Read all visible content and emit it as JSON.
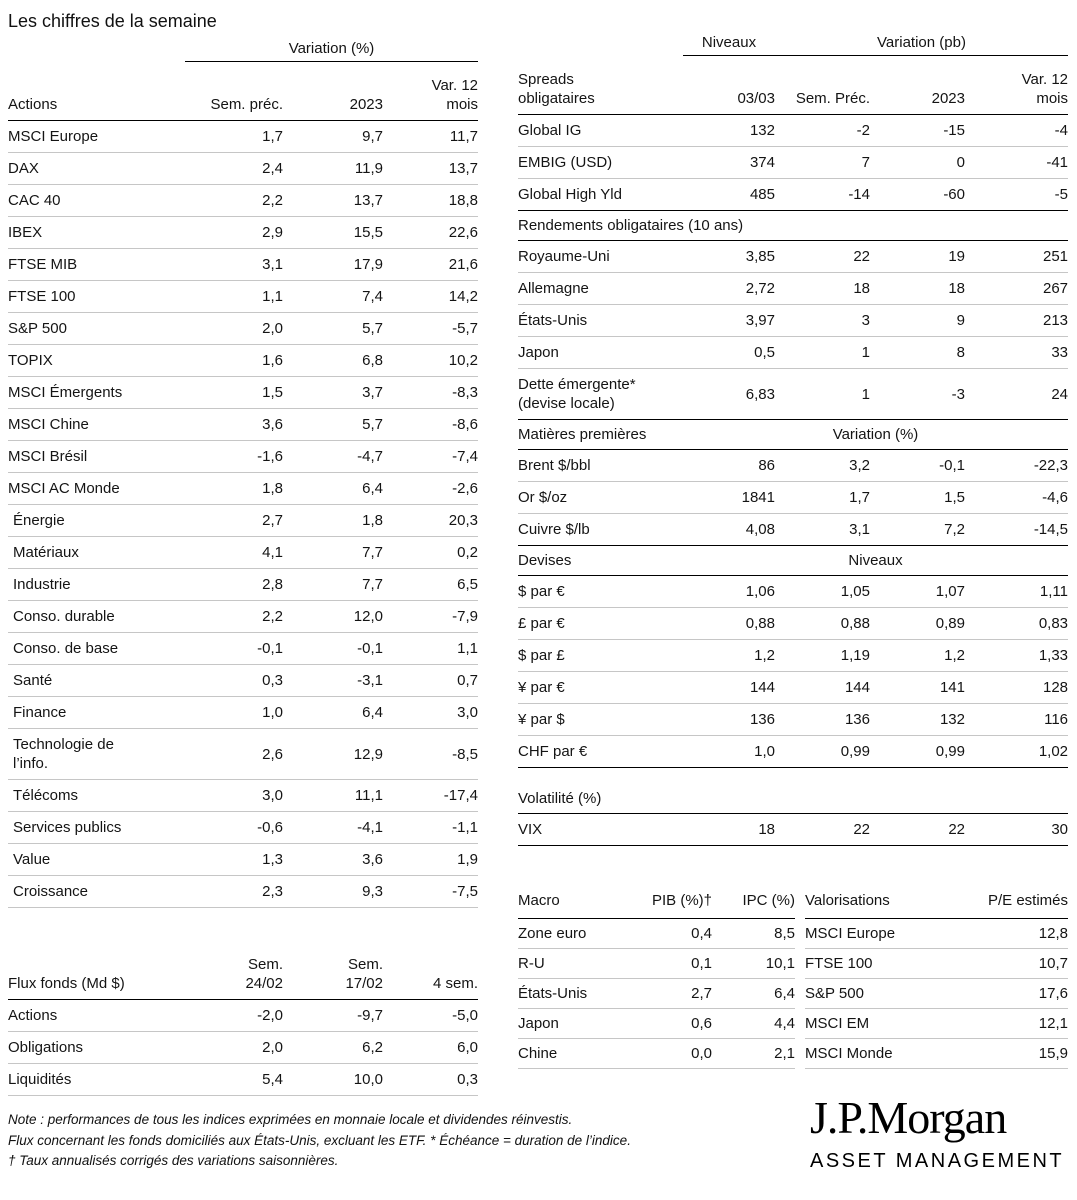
{
  "page": {
    "title": "Les chiffres de la semaine"
  },
  "actions": {
    "group_header": "Variation (%)",
    "col_label": "Actions",
    "col_prev": "Sem. préc.",
    "col_2023": "2023",
    "col_12m": "Var. 12\nmois",
    "rows": [
      {
        "label": "MSCI Europe",
        "values": [
          "1,7",
          "9,7",
          "11,7"
        ]
      },
      {
        "label": "DAX",
        "values": [
          "2,4",
          "11,9",
          "13,7"
        ]
      },
      {
        "label": "CAC 40",
        "values": [
          "2,2",
          "13,7",
          "18,8"
        ]
      },
      {
        "label": "IBEX",
        "values": [
          "2,9",
          "15,5",
          "22,6"
        ]
      },
      {
        "label": "FTSE MIB",
        "values": [
          "3,1",
          "17,9",
          "21,6"
        ]
      },
      {
        "label": "FTSE 100",
        "values": [
          "1,1",
          "7,4",
          "14,2"
        ]
      },
      {
        "label": "S&P 500",
        "values": [
          "2,0",
          "5,7",
          "-5,7"
        ]
      },
      {
        "label": "TOPIX",
        "values": [
          "1,6",
          "6,8",
          "10,2"
        ]
      },
      {
        "label": "MSCI Émergents",
        "values": [
          "1,5",
          "3,7",
          "-8,3"
        ]
      },
      {
        "label": "MSCI Chine",
        "values": [
          "3,6",
          "5,7",
          "-8,6"
        ]
      },
      {
        "label": "MSCI Brésil",
        "values": [
          "-1,6",
          "-4,7",
          "-7,4"
        ]
      },
      {
        "label": "MSCI AC Monde",
        "values": [
          "1,8",
          "6,4",
          "-2,6"
        ]
      },
      {
        "label": "Énergie",
        "indent": true,
        "values": [
          "2,7",
          "1,8",
          "20,3"
        ]
      },
      {
        "label": "Matériaux",
        "indent": true,
        "values": [
          "4,1",
          "7,7",
          "0,2"
        ]
      },
      {
        "label": "Industrie",
        "indent": true,
        "values": [
          "2,8",
          "7,7",
          "6,5"
        ]
      },
      {
        "label": "Conso. durable",
        "indent": true,
        "values": [
          "2,2",
          "12,0",
          "-7,9"
        ]
      },
      {
        "label": "Conso. de base",
        "indent": true,
        "values": [
          "-0,1",
          "-0,1",
          "1,1"
        ]
      },
      {
        "label": "Santé",
        "indent": true,
        "values": [
          "0,3",
          "-3,1",
          "0,7"
        ]
      },
      {
        "label": "Finance",
        "indent": true,
        "values": [
          "1,0",
          "6,4",
          "3,0"
        ]
      },
      {
        "label": "Technologie de\nl’info.",
        "indent": true,
        "values": [
          "2,6",
          "12,9",
          "-8,5"
        ]
      },
      {
        "label": "Télécoms",
        "indent": true,
        "values": [
          "3,0",
          "11,1",
          "-17,4"
        ]
      },
      {
        "label": "Services publics",
        "indent": true,
        "values": [
          "-0,6",
          "-4,1",
          "-1,1"
        ]
      },
      {
        "label": "Value",
        "indent": true,
        "values": [
          "1,3",
          "3,6",
          "1,9"
        ]
      },
      {
        "label": "Croissance",
        "indent": true,
        "values": [
          "2,3",
          "9,3",
          "-7,5"
        ]
      }
    ]
  },
  "flux": {
    "col_label": "Flux fonds (Md $)",
    "col_prev": "Sem.\n24/02",
    "col_prev2": "Sem.\n17/02",
    "col_4w": "4 sem.",
    "rows": [
      {
        "label": "Actions",
        "values": [
          "-2,0",
          "-9,7",
          "-5,0"
        ]
      },
      {
        "label": "Obligations",
        "values": [
          "2,0",
          "6,2",
          "6,0"
        ]
      },
      {
        "label": "Liquidités",
        "values": [
          "5,4",
          "10,0",
          "0,3"
        ]
      }
    ]
  },
  "market": {
    "header_niveaux": "Niveaux",
    "header_variation": "Variation (pb)",
    "col_label": "Spreads\nobligataires",
    "col_date": "03/03",
    "col_prev": "Sem. Préc.",
    "col_2023": "2023",
    "col_12m": "Var. 12\nmois",
    "rows": [
      {
        "label": "Global IG",
        "values": [
          "132",
          "-2",
          "-15",
          "-4"
        ]
      },
      {
        "label": "EMBIG (USD)",
        "values": [
          "374",
          "7",
          "0",
          "-41"
        ]
      },
      {
        "label": "Global High Yld",
        "values": [
          "485",
          "-14",
          "-60",
          "-5"
        ]
      },
      {
        "section": "Rendements obligataires (10 ans)"
      },
      {
        "label": "Royaume-Uni",
        "values": [
          "3,85",
          "22",
          "19",
          "251"
        ]
      },
      {
        "label": "Allemagne",
        "values": [
          "2,72",
          "18",
          "18",
          "267"
        ]
      },
      {
        "label": "États-Unis",
        "values": [
          "3,97",
          "3",
          "9",
          "213"
        ]
      },
      {
        "label": "Japon",
        "values": [
          "0,5",
          "1",
          "8",
          "33"
        ]
      },
      {
        "label": "Dette émergente*\n(devise locale)",
        "values": [
          "6,83",
          "1",
          "-3",
          "24"
        ]
      },
      {
        "section": "Matières premières",
        "section_right": "Variation (%)"
      },
      {
        "label": "Brent $/bbl",
        "values": [
          "86",
          "3,2",
          "-0,1",
          "-22,3"
        ]
      },
      {
        "label": "Or $/oz",
        "values": [
          "1841",
          "1,7",
          "1,5",
          "-4,6"
        ]
      },
      {
        "label": "Cuivre $/lb",
        "values": [
          "4,08",
          "3,1",
          "7,2",
          "-14,5"
        ]
      },
      {
        "section": "Devises",
        "section_right": "Niveaux"
      },
      {
        "label": "$ par €",
        "values": [
          "1,06",
          "1,05",
          "1,07",
          "1,11"
        ]
      },
      {
        "label": "£ par €",
        "values": [
          "0,88",
          "0,88",
          "0,89",
          "0,83"
        ]
      },
      {
        "label": "$ par £",
        "values": [
          "1,2",
          "1,19",
          "1,2",
          "1,33"
        ]
      },
      {
        "label": "¥ par €",
        "values": [
          "144",
          "144",
          "141",
          "128"
        ]
      },
      {
        "label": "¥ par $",
        "values": [
          "136",
          "136",
          "132",
          "116"
        ]
      },
      {
        "label": "CHF par €",
        "values": [
          "1,0",
          "0,99",
          "0,99",
          "1,02"
        ]
      },
      {
        "section": "Volatilité (%)",
        "gap": true
      },
      {
        "label": "VIX",
        "values": [
          "18",
          "22",
          "22",
          "30"
        ]
      }
    ]
  },
  "macro": {
    "col_label": "Macro",
    "col_pib": "PIB (%)†",
    "col_ipc": "IPC (%)",
    "rows": [
      {
        "label": "Zone euro",
        "values": [
          "0,4",
          "8,5"
        ]
      },
      {
        "label": "R-U",
        "values": [
          "0,1",
          "10,1"
        ]
      },
      {
        "label": "États-Unis",
        "values": [
          "2,7",
          "6,4"
        ]
      },
      {
        "label": "Japon",
        "values": [
          "0,6",
          "4,4"
        ]
      },
      {
        "label": "Chine",
        "values": [
          "0,0",
          "2,1"
        ]
      }
    ]
  },
  "valuations": {
    "col_label": "Valorisations",
    "col_pe": "P/E estimés",
    "rows": [
      {
        "label": "MSCI Europe",
        "values": [
          "12,8"
        ]
      },
      {
        "label": "FTSE 100",
        "values": [
          "10,7"
        ]
      },
      {
        "label": "S&P 500",
        "values": [
          "17,6"
        ]
      },
      {
        "label": "MSCI EM",
        "values": [
          "12,1"
        ]
      },
      {
        "label": "MSCI Monde",
        "values": [
          "15,9"
        ]
      }
    ]
  },
  "notes": [
    "Note : performances de tous les indices exprimées en monnaie locale et dividendes réinvestis.",
    "Flux concernant les fonds domiciliés aux États-Unis, excluant les ETF. * Échéance = duration de l’indice.",
    "† Taux annualisés corrigés des variations saisonnières."
  ],
  "logo": {
    "brand": "J.P.Morgan",
    "division": "ASSET MANAGEMENT"
  }
}
